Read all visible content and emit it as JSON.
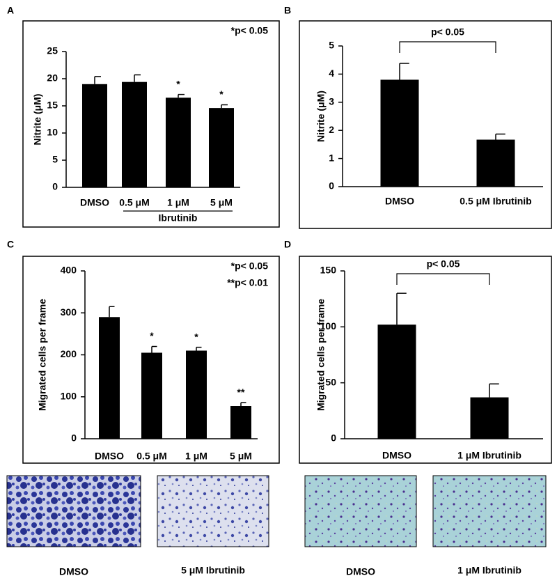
{
  "chart_data": [
    {
      "type": "bar",
      "panel": "A",
      "ylabel": "Nitrite (μM)",
      "categories": [
        "DMSO",
        "0.5 μM",
        "1 μM",
        "5 μM"
      ],
      "group_label": "Ibrutinib",
      "values": [
        19,
        19.4,
        16.5,
        14.6
      ],
      "errors": [
        1.4,
        1.3,
        0.6,
        0.6
      ],
      "significance": [
        null,
        null,
        "*",
        "*"
      ],
      "annotations": [
        "*p< 0.05"
      ],
      "color": "#000000",
      "ylim": [
        0,
        25
      ],
      "yticks": [
        0,
        5,
        10,
        15,
        20,
        25
      ]
    },
    {
      "type": "bar",
      "panel": "B",
      "ylabel": "Nitrite (μM)",
      "categories": [
        "DMSO",
        "0.5 μM Ibrutinib"
      ],
      "values": [
        3.8,
        1.67
      ],
      "errors": [
        0.58,
        0.2
      ],
      "bracket_label": "p< 0.05",
      "color": "#000000",
      "ylim": [
        0,
        5
      ],
      "yticks": [
        0,
        1,
        2,
        3,
        4,
        5
      ]
    },
    {
      "type": "bar",
      "panel": "C",
      "ylabel": "Migrated cells per frame",
      "categories": [
        "DMSO",
        "0.5 μM",
        "1 μM",
        "5 μM"
      ],
      "values": [
        290,
        205,
        210,
        78
      ],
      "errors": [
        25,
        15,
        8,
        8
      ],
      "significance": [
        null,
        "*",
        "*",
        "**"
      ],
      "annotations": [
        "*p< 0.05",
        "**p< 0.01"
      ],
      "color": "#000000",
      "ylim": [
        0,
        400
      ],
      "yticks": [
        0,
        100,
        200,
        300,
        400
      ]
    },
    {
      "type": "bar",
      "panel": "D",
      "ylabel": "Migrated cells per frame",
      "categories": [
        "DMSO",
        "1 μM Ibrutinib"
      ],
      "values": [
        102,
        37
      ],
      "errors": [
        28,
        12
      ],
      "bracket_label": "p< 0.05",
      "color": "#000000",
      "ylim": [
        0,
        150
      ],
      "yticks": [
        0,
        50,
        100,
        150
      ]
    }
  ],
  "image_captions": [
    "DMSO",
    "5 μM Ibrutinib",
    "DMSO",
    "1 μM Ibrutinib"
  ]
}
